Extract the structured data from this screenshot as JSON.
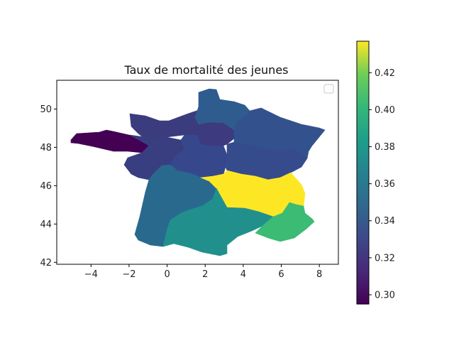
{
  "chart_data": {
    "type": "choropleth",
    "title": "Taux de mortalité des jeunes",
    "xlabel": "",
    "ylabel": "",
    "xlim": [
      -5.8,
      9.0
    ],
    "ylim": [
      41.9,
      51.5
    ],
    "x_ticks": [
      "−4",
      "−2",
      "0",
      "2",
      "4",
      "6",
      "8"
    ],
    "x_tick_values": [
      -4,
      -2,
      0,
      2,
      4,
      6,
      8
    ],
    "y_ticks": [
      "42",
      "44",
      "46",
      "48",
      "50"
    ],
    "y_tick_values": [
      42,
      44,
      46,
      48,
      50
    ],
    "colormap": "viridis",
    "colorbar": {
      "range": [
        0.295,
        0.437
      ],
      "ticks": [
        "0.30",
        "0.32",
        "0.34",
        "0.36",
        "0.38",
        "0.40",
        "0.42"
      ],
      "tick_values": [
        0.3,
        0.32,
        0.34,
        0.36,
        0.38,
        0.4,
        0.42
      ]
    },
    "legend": "top-right, empty",
    "regions": [
      {
        "value": 0.296,
        "color": "#440154"
      },
      {
        "value": 0.321,
        "color": "#3b3c7e"
      },
      {
        "value": 0.324,
        "color": "#393e80"
      },
      {
        "value": 0.33,
        "color": "#36488b"
      },
      {
        "value": 0.32,
        "color": "#3d3a7f"
      },
      {
        "value": 0.343,
        "color": "#2e5c8e"
      },
      {
        "value": 0.337,
        "color": "#33528d"
      },
      {
        "value": 0.333,
        "color": "#364b8c"
      },
      {
        "value": 0.35,
        "color": "#29698e"
      },
      {
        "value": 0.437,
        "color": "#fde725"
      },
      {
        "value": 0.366,
        "color": "#21908d"
      },
      {
        "value": 0.384,
        "color": "#3cbb75"
      },
      {
        "value": 0.383,
        "color": "#3bb977"
      }
    ]
  }
}
